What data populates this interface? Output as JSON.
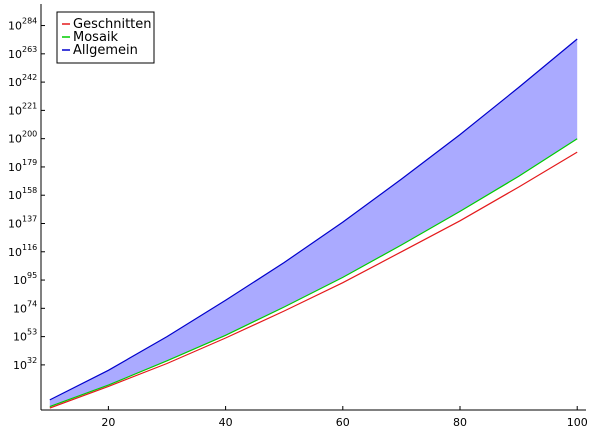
{
  "chart_data": {
    "type": "line",
    "title": "",
    "xlabel": "",
    "ylabel": "",
    "xlim": [
      8.5,
      101.5
    ],
    "ylim_log10": [
      -1.5,
      300
    ],
    "yscale": "log",
    "x_ticks": [
      20,
      40,
      60,
      80,
      100
    ],
    "y_ticks": [
      {
        "base": "10",
        "exp": "32",
        "value": 32
      },
      {
        "base": "10",
        "exp": "53",
        "value": 53
      },
      {
        "base": "10",
        "exp": "74",
        "value": 74
      },
      {
        "base": "10",
        "exp": "95",
        "value": 95
      },
      {
        "base": "10",
        "exp": "116",
        "value": 116
      },
      {
        "base": "10",
        "exp": "137",
        "value": 137
      },
      {
        "base": "10",
        "exp": "158",
        "value": 158
      },
      {
        "base": "10",
        "exp": "179",
        "value": 179
      },
      {
        "base": "10",
        "exp": "200",
        "value": 200
      },
      {
        "base": "10",
        "exp": "221",
        "value": 221
      },
      {
        "base": "10",
        "exp": "242",
        "value": 242
      },
      {
        "base": "10",
        "exp": "263",
        "value": 263
      },
      {
        "base": "10",
        "exp": "284",
        "value": 284
      }
    ],
    "x": [
      10,
      20,
      30,
      40,
      50,
      60,
      70,
      80,
      90,
      100
    ],
    "series": [
      {
        "name": "Geschnitten",
        "color": "#e41a1c",
        "log10_values": [
          0,
          16,
          33,
          52,
          72,
          93,
          116,
          139,
          164,
          190
        ]
      },
      {
        "name": "Mosaik",
        "color": "#00cc00",
        "log10_values": [
          1,
          17,
          35,
          54,
          75,
          97,
          121,
          146,
          172,
          200
        ]
      },
      {
        "name": "Allgemein",
        "color": "#0000cc",
        "log10_values": [
          6,
          28,
          53,
          80,
          108,
          138,
          170,
          203,
          238,
          274
        ]
      }
    ],
    "fill_between": {
      "lower": "Mosaik",
      "upper": "Allgemein",
      "color": "#aaaaff"
    },
    "grid": false,
    "legend_position": "top-left"
  }
}
